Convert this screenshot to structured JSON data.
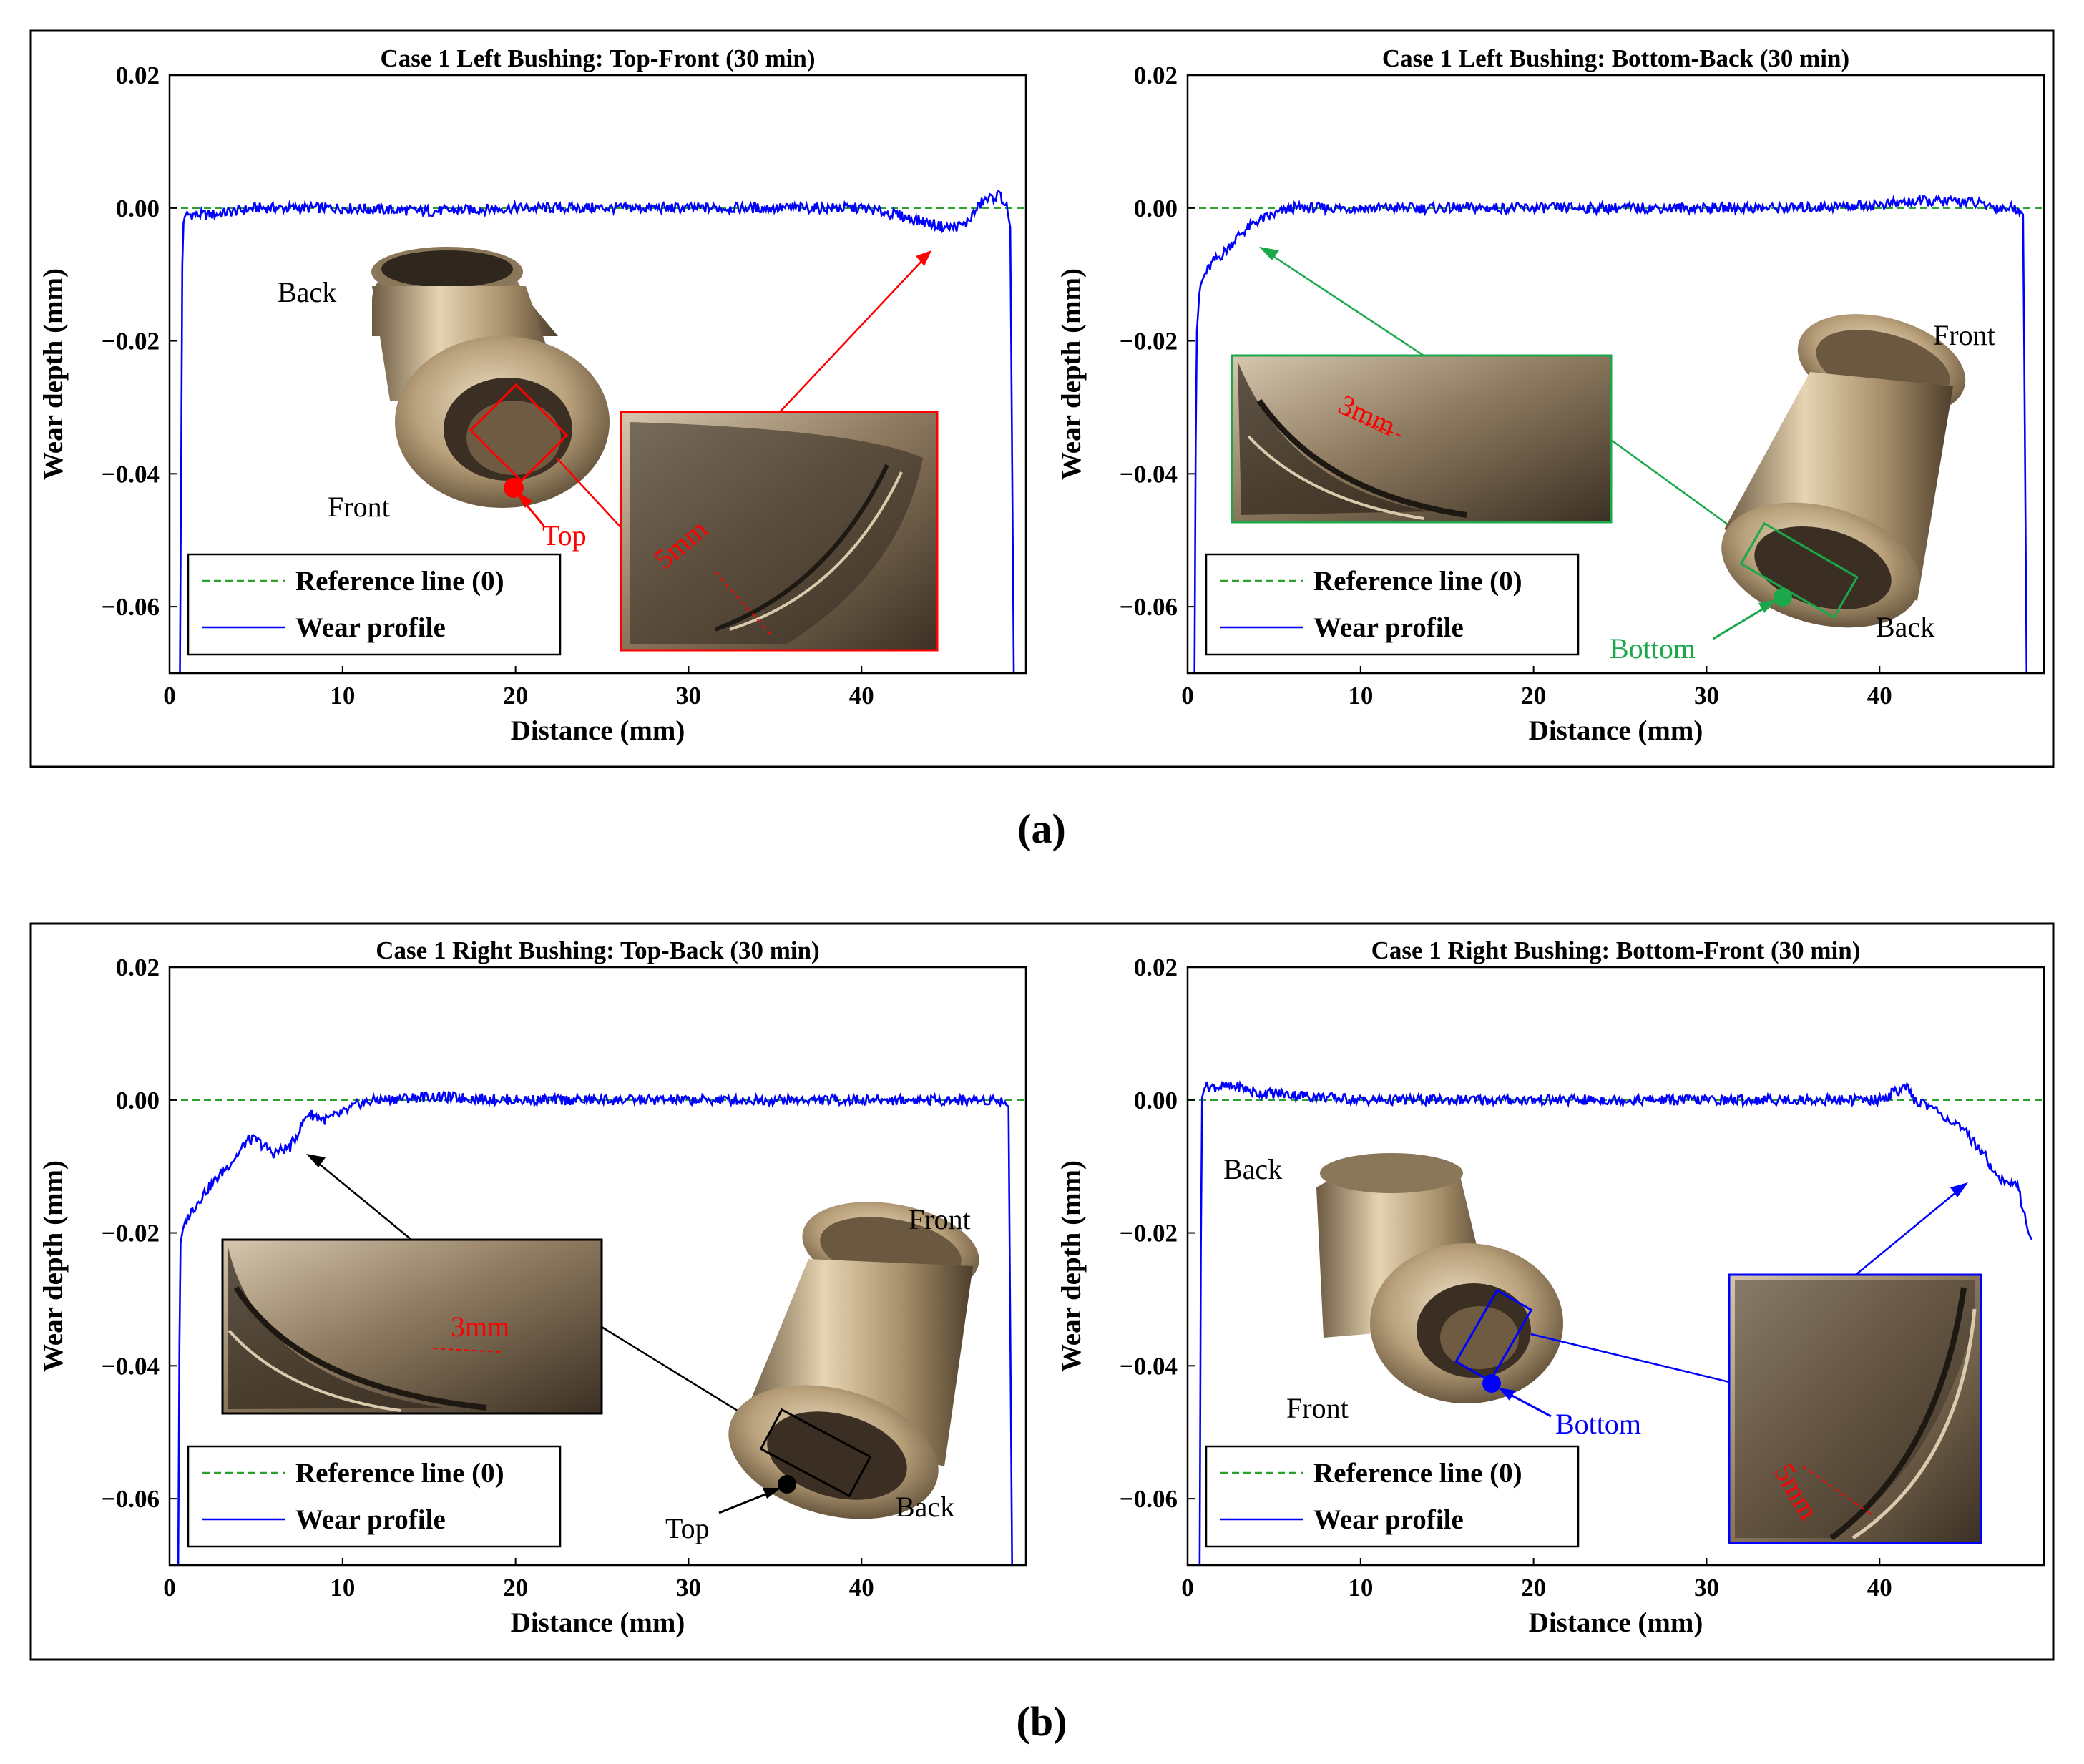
{
  "figure": {
    "caption_a": "(a)",
    "caption_b": "(b)",
    "colors": {
      "wear": "#0000ff",
      "reference": "#2ca02c",
      "red": "#ff0000",
      "green": "#1aa84a",
      "black": "#000000",
      "blue": "#0000ff"
    }
  },
  "chart_data": [
    {
      "type": "line",
      "title": "Case 1 Left Bushing: Top-Front (30 min)",
      "xlabel": "Distance (mm)",
      "ylabel": "Wear depth (mm)",
      "xlim": [
        0,
        49.5
      ],
      "ylim": [
        -0.07,
        0.02
      ],
      "xticks": [
        "0",
        "10",
        "20",
        "30",
        "40"
      ],
      "yticks": [
        "0.02",
        "0.00",
        "−0.02",
        "−0.04",
        "−0.06"
      ],
      "legend": {
        "position": "bottom-left",
        "entries": [
          "Reference line (0)",
          "Wear profile"
        ]
      },
      "series": [
        {
          "name": "Reference line (0)",
          "style": "dashed",
          "x": [
            0,
            49.5
          ],
          "y": [
            0,
            0
          ]
        },
        {
          "name": "Wear profile",
          "x": [
            0.6,
            0.75,
            0.9,
            2.5,
            5,
            10,
            15,
            20,
            25,
            30,
            35,
            40,
            42,
            43.5,
            45,
            46,
            47,
            48,
            48.4,
            48.6,
            48.8
          ],
          "y": [
            -0.07,
            -0.003,
            -0.001,
            -0.001,
            0.0,
            0.0,
            -0.0005,
            0.0,
            0.0,
            0.0,
            0.0,
            0.0,
            -0.001,
            -0.002,
            -0.003,
            -0.0025,
            0.001,
            0.002,
            0.0,
            -0.003,
            -0.07
          ]
        }
      ],
      "annotations": [
        "Back",
        "Front",
        "Top",
        "5mm"
      ]
    },
    {
      "type": "line",
      "title": "Case 1 Left Bushing: Bottom-Back (30 min)",
      "xlabel": "Distance (mm)",
      "ylabel": "Wear depth (mm)",
      "xlim": [
        0,
        49.5
      ],
      "ylim": [
        -0.07,
        0.02
      ],
      "xticks": [
        "0",
        "10",
        "20",
        "30",
        "40"
      ],
      "yticks": [
        "0.02",
        "0.00",
        "−0.02",
        "−0.04",
        "−0.06"
      ],
      "legend": {
        "position": "bottom-left",
        "entries": [
          "Reference line (0)",
          "Wear profile"
        ]
      },
      "series": [
        {
          "name": "Reference line (0)",
          "style": "dashed",
          "x": [
            0,
            49.5
          ],
          "y": [
            0,
            0
          ]
        },
        {
          "name": "Wear profile",
          "x": [
            0.4,
            0.5,
            0.7,
            1.0,
            1.5,
            2,
            3,
            4,
            5,
            6,
            10,
            15,
            20,
            25,
            30,
            35,
            40,
            42,
            45,
            47,
            48,
            48.3,
            48.5
          ],
          "y": [
            -0.07,
            -0.02,
            -0.012,
            -0.01,
            -0.008,
            -0.007,
            -0.004,
            -0.002,
            -0.001,
            0.0,
            0.0,
            0.0,
            0.0,
            0.0,
            0.0,
            0.0,
            0.0005,
            0.001,
            0.001,
            0.0,
            0.0,
            -0.001,
            -0.07
          ]
        }
      ],
      "annotations": [
        "Front",
        "Back",
        "Bottom",
        "3mm"
      ]
    },
    {
      "type": "line",
      "title": "Case 1 Right Bushing: Top-Back (30 min)",
      "xlabel": "Distance (mm)",
      "ylabel": "Wear depth (mm)",
      "xlim": [
        0,
        49.5
      ],
      "ylim": [
        -0.07,
        0.02
      ],
      "xticks": [
        "0",
        "10",
        "20",
        "30",
        "40"
      ],
      "yticks": [
        "0.02",
        "0.00",
        "−0.02",
        "−0.04",
        "−0.06"
      ],
      "legend": {
        "position": "bottom-left",
        "entries": [
          "Reference line (0)",
          "Wear profile"
        ]
      },
      "series": [
        {
          "name": "Reference line (0)",
          "style": "dashed",
          "x": [
            0,
            49.5
          ],
          "y": [
            0,
            0
          ]
        },
        {
          "name": "Wear profile",
          "x": [
            0.5,
            0.6,
            0.8,
            1.2,
            2,
            3,
            4,
            4.5,
            5,
            6,
            7,
            8,
            9,
            10,
            11,
            12,
            15,
            20,
            25,
            30,
            35,
            40,
            45,
            48,
            48.5,
            48.7
          ],
          "y": [
            -0.07,
            -0.022,
            -0.019,
            -0.017,
            -0.014,
            -0.011,
            -0.008,
            -0.006,
            -0.006,
            -0.008,
            -0.007,
            -0.002,
            -0.003,
            -0.002,
            -0.0005,
            0.0,
            0.0005,
            0.0,
            0.0,
            0.0,
            0.0,
            0.0,
            0.0,
            0.0,
            -0.001,
            -0.07
          ]
        }
      ],
      "annotations": [
        "Front",
        "Back",
        "Top",
        "3mm"
      ]
    },
    {
      "type": "line",
      "title": "Case 1 Right Bushing: Bottom-Front (30 min)",
      "xlabel": "Distance (mm)",
      "ylabel": "Wear depth (mm)",
      "xlim": [
        0,
        49.5
      ],
      "ylim": [
        -0.07,
        0.02
      ],
      "xticks": [
        "0",
        "10",
        "20",
        "30",
        "40"
      ],
      "yticks": [
        "0.02",
        "0.00",
        "−0.02",
        "−0.04",
        "−0.06"
      ],
      "legend": {
        "position": "bottom-left",
        "entries": [
          "Reference line (0)",
          "Wear profile"
        ]
      },
      "series": [
        {
          "name": "Reference line (0)",
          "style": "dashed",
          "x": [
            0,
            49.5
          ],
          "y": [
            0,
            0
          ]
        },
        {
          "name": "Wear profile",
          "x": [
            0.7,
            0.8,
            1.0,
            2,
            3,
            4,
            5,
            10,
            15,
            20,
            25,
            30,
            35,
            40,
            41.5,
            42,
            43,
            44,
            45,
            46,
            47,
            48,
            48.6,
            48.8
          ],
          "y": [
            -0.07,
            0.0,
            0.002,
            0.002,
            0.002,
            0.001,
            0.001,
            0.0,
            0.0,
            0.0,
            0.0,
            0.0,
            0.0,
            0.0,
            0.002,
            0.0,
            -0.001,
            -0.003,
            -0.005,
            -0.008,
            -0.012,
            -0.013,
            -0.02,
            -0.021
          ]
        }
      ],
      "annotations": [
        "Back",
        "Front",
        "Bottom",
        "5mm"
      ]
    }
  ]
}
